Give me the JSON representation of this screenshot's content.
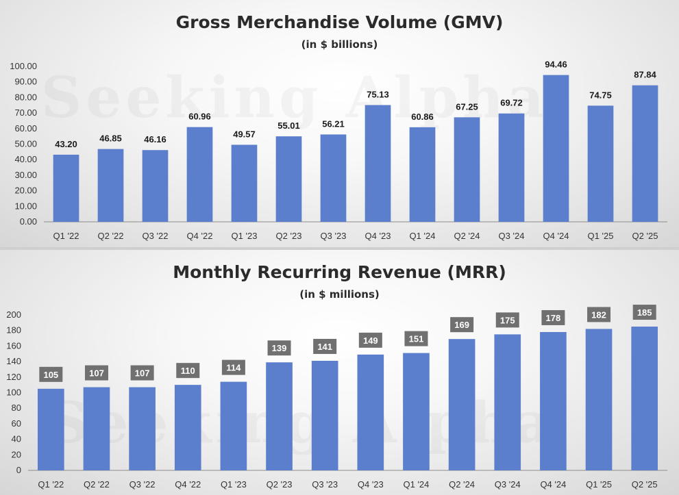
{
  "watermark": "Seeking Alpha",
  "colors": {
    "bar": "#5b7fcd",
    "gmv_label": "#1a1a1a",
    "mrr_label_bg": "#707070",
    "mrr_label_text": "#ffffff",
    "axis": "#8c8c8c"
  },
  "chart_data": [
    {
      "type": "bar",
      "title": "Gross Merchandise Volume (GMV)",
      "subtitle": "(in $ billions)",
      "xlabel": "",
      "ylabel": "",
      "categories": [
        "Q1 '22",
        "Q2 '22",
        "Q3 '22",
        "Q4 '22",
        "Q1 '23",
        "Q2 '23",
        "Q3 '23",
        "Q4 '23",
        "Q1 '24",
        "Q2 '24",
        "Q3 '24",
        "Q4 '24",
        "Q1 '25",
        "Q2 '25"
      ],
      "values": [
        43.2,
        46.85,
        46.16,
        60.96,
        49.57,
        55.01,
        56.21,
        75.13,
        60.86,
        67.25,
        69.72,
        94.46,
        74.75,
        87.84
      ],
      "data_labels": [
        "43.20",
        "46.85",
        "46.16",
        "60.96",
        "49.57",
        "55.01",
        "56.21",
        "75.13",
        "60.86",
        "67.25",
        "69.72",
        "94.46",
        "74.75",
        "87.84"
      ],
      "ylim": [
        0,
        100
      ],
      "yticks": [
        "0.00",
        "10.00",
        "20.00",
        "30.00",
        "40.00",
        "50.00",
        "60.00",
        "70.00",
        "80.00",
        "90.00",
        "100.00"
      ],
      "grid": false,
      "legend": "none"
    },
    {
      "type": "bar",
      "title": "Monthly Recurring Revenue (MRR)",
      "subtitle": "(in $ millions)",
      "xlabel": "",
      "ylabel": "",
      "categories": [
        "Q1 '22",
        "Q2 '22",
        "Q3 '22",
        "Q4 '22",
        "Q1 '23",
        "Q2 '23",
        "Q3 '23",
        "Q4 '23",
        "Q1 '24",
        "Q2 '24",
        "Q3 '24",
        "Q4 '24",
        "Q1 '25",
        "Q2 '25"
      ],
      "values": [
        105,
        107,
        107,
        110,
        114,
        139,
        141,
        149,
        151,
        169,
        175,
        178,
        182,
        185
      ],
      "data_labels": [
        "105",
        "107",
        "107",
        "110",
        "114",
        "139",
        "141",
        "149",
        "151",
        "169",
        "175",
        "178",
        "182",
        "185"
      ],
      "ylim": [
        0,
        200
      ],
      "yticks": [
        "0",
        "20",
        "40",
        "60",
        "80",
        "100",
        "120",
        "140",
        "160",
        "180",
        "200"
      ],
      "grid": false,
      "legend": "none"
    }
  ]
}
